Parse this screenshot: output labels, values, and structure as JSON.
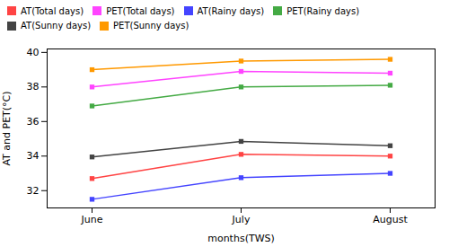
{
  "chart_data": {
    "type": "line",
    "categories": [
      "June",
      "July",
      "August"
    ],
    "xlabel": "months(TWS)",
    "ylabel": "AT and PET(°C)",
    "ylim": [
      31.0,
      40.2
    ],
    "yticks": [
      32,
      34,
      36,
      38,
      40
    ],
    "grid": false,
    "legend": "upper right",
    "series": [
      {
        "name": "AT(Total days)",
        "color": "#FF4444",
        "values": [
          32.7,
          34.1,
          34.0
        ],
        "marker": "square"
      },
      {
        "name": "PET(Total days)",
        "color": "#FF44FF",
        "values": [
          38.0,
          38.9,
          38.8
        ],
        "marker": "square"
      },
      {
        "name": "AT(Rainy days)",
        "color": "#4444FF",
        "values": [
          31.5,
          32.75,
          33.0
        ],
        "marker": "square"
      },
      {
        "name": "PET(Rainy days)",
        "color": "#44AA44",
        "values": [
          36.9,
          38.0,
          38.1
        ],
        "marker": "square"
      },
      {
        "name": "AT(Sunny days)",
        "color": "#444444",
        "values": [
          33.95,
          34.85,
          34.6
        ],
        "marker": "square"
      },
      {
        "name": "PET(Sunny days)",
        "color": "#FF9900",
        "values": [
          39.0,
          39.5,
          39.6
        ],
        "marker": "square"
      }
    ]
  }
}
